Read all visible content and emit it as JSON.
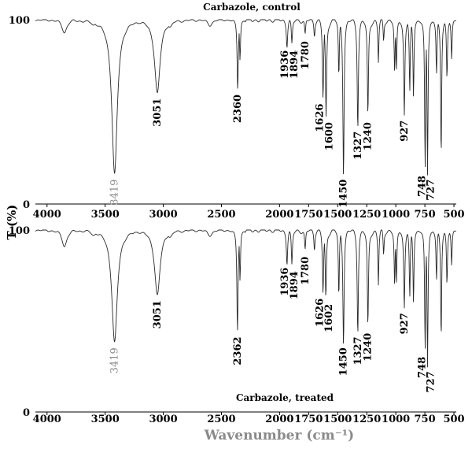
{
  "chart_data": [
    {
      "type": "line",
      "title": "Carbazole, control",
      "xlim": [
        4100,
        480
      ],
      "ylim": [
        0,
        100
      ],
      "x_ticks": [
        4000,
        3500,
        3000,
        2500,
        2000,
        1750,
        1500,
        1250,
        1000,
        750,
        500
      ],
      "y_ticks": [
        0,
        100
      ],
      "peaks": [
        {
          "x": 3419,
          "y": 16,
          "label": "3419",
          "gray": true
        },
        {
          "x": 3051,
          "y": 60,
          "label": "3051"
        },
        {
          "x": 2360,
          "y": 62,
          "label": "2360"
        },
        {
          "x": 1936,
          "y": 86,
          "label": "1936"
        },
        {
          "x": 1894,
          "y": 86,
          "label": "1894"
        },
        {
          "x": 1780,
          "y": 91,
          "label": "1780"
        },
        {
          "x": 1626,
          "y": 57,
          "label": "1626"
        },
        {
          "x": 1600,
          "y": 47,
          "label": "1600"
        },
        {
          "x": 1450,
          "y": 16,
          "label": "1450"
        },
        {
          "x": 1327,
          "y": 42,
          "label": "1327"
        },
        {
          "x": 1240,
          "y": 47,
          "label": "1240"
        },
        {
          "x": 927,
          "y": 48,
          "label": "927"
        },
        {
          "x": 748,
          "y": 18,
          "label": "748"
        },
        {
          "x": 727,
          "y": 16,
          "label": "727"
        }
      ],
      "minor_dips": [
        {
          "x": 3850,
          "y": 93
        },
        {
          "x": 3600,
          "y": 97
        },
        {
          "x": 2940,
          "y": 96
        },
        {
          "x": 2600,
          "y": 97
        },
        {
          "x": 2340,
          "y": 78
        },
        {
          "x": 1700,
          "y": 92
        },
        {
          "x": 1490,
          "y": 68
        },
        {
          "x": 1150,
          "y": 77
        },
        {
          "x": 1105,
          "y": 88
        },
        {
          "x": 1010,
          "y": 70
        },
        {
          "x": 995,
          "y": 72
        },
        {
          "x": 880,
          "y": 60
        },
        {
          "x": 848,
          "y": 58
        },
        {
          "x": 650,
          "y": 70
        },
        {
          "x": 610,
          "y": 25
        },
        {
          "x": 560,
          "y": 68
        },
        {
          "x": 520,
          "y": 78
        }
      ]
    },
    {
      "type": "line",
      "title": "Carbazole, treated",
      "xlim": [
        4100,
        480
      ],
      "ylim": [
        0,
        100
      ],
      "x_ticks": [
        4000,
        3500,
        3000,
        2500,
        2000,
        1750,
        1500,
        1250,
        1000,
        750,
        500
      ],
      "y_ticks": [
        0,
        100
      ],
      "peaks": [
        {
          "x": 3419,
          "y": 38,
          "label": "3419",
          "gray": true
        },
        {
          "x": 3051,
          "y": 64,
          "label": "3051"
        },
        {
          "x": 2362,
          "y": 44,
          "label": "2362"
        },
        {
          "x": 1936,
          "y": 82,
          "label": "1936"
        },
        {
          "x": 1894,
          "y": 80,
          "label": "1894"
        },
        {
          "x": 1780,
          "y": 88,
          "label": "1780"
        },
        {
          "x": 1626,
          "y": 65,
          "label": "1626"
        },
        {
          "x": 1602,
          "y": 62,
          "label": "1602"
        },
        {
          "x": 1450,
          "y": 38,
          "label": "1450"
        },
        {
          "x": 1327,
          "y": 44,
          "label": "1327"
        },
        {
          "x": 1240,
          "y": 46,
          "label": "1240"
        },
        {
          "x": 927,
          "y": 57,
          "label": "927"
        },
        {
          "x": 748,
          "y": 33,
          "label": "748"
        },
        {
          "x": 727,
          "y": 25,
          "label": "727"
        }
      ],
      "minor_dips": [
        {
          "x": 3850,
          "y": 91
        },
        {
          "x": 3600,
          "y": 97
        },
        {
          "x": 2940,
          "y": 96
        },
        {
          "x": 2600,
          "y": 97
        },
        {
          "x": 2340,
          "y": 72
        },
        {
          "x": 1700,
          "y": 90
        },
        {
          "x": 1490,
          "y": 62
        },
        {
          "x": 1150,
          "y": 70
        },
        {
          "x": 1105,
          "y": 86
        },
        {
          "x": 1010,
          "y": 68
        },
        {
          "x": 995,
          "y": 70
        },
        {
          "x": 880,
          "y": 62
        },
        {
          "x": 848,
          "y": 60
        },
        {
          "x": 650,
          "y": 72
        },
        {
          "x": 610,
          "y": 40
        },
        {
          "x": 560,
          "y": 70
        },
        {
          "x": 520,
          "y": 80
        }
      ]
    }
  ],
  "axes": {
    "ylabel": "T (%)",
    "xlabel": "Wavenumber (cm⁻¹)"
  }
}
